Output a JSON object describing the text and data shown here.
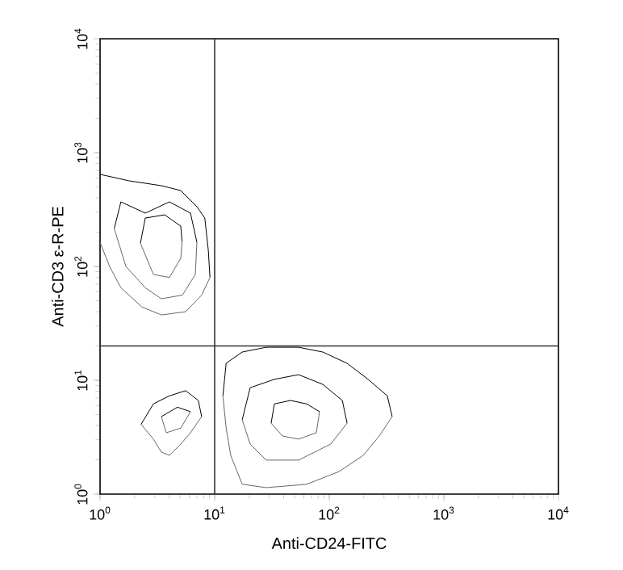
{
  "chart_data": {
    "type": "line",
    "xlabel": "Anti-CD24-FITC",
    "ylabel": "Anti-CD3 ε-R-PE",
    "log": "xy",
    "xlim": [
      1,
      10000
    ],
    "ylim": [
      1,
      10000
    ],
    "xticks": [
      {
        "value": 1,
        "label": "10$^{0}$"
      },
      {
        "value": 10,
        "label": "10$^{1}$"
      },
      {
        "value": 100,
        "label": "10$^{2}$"
      },
      {
        "value": 1000,
        "label": "10$^{3}$"
      },
      {
        "value": 10000,
        "label": "10$^{4}$"
      }
    ],
    "yticks": [
      {
        "value": 1,
        "label": "10$^{0}$"
      },
      {
        "value": 10,
        "label": "10$^{1}$"
      },
      {
        "value": 100,
        "label": "10$^{2}$"
      },
      {
        "value": 1000,
        "label": "10$^{3}$"
      },
      {
        "value": 10000,
        "label": "10$^{4}$"
      }
    ],
    "ref_lines": [
      {
        "axis": "x",
        "value": 10,
        "color": "#333333"
      },
      {
        "axis": "y",
        "value": 20,
        "color": "#333333"
      }
    ],
    "series": [
      {
        "color": "#000000",
        "x": [
          1,
          1.79,
          3.43,
          5.06,
          7.0,
          8.2,
          8.8,
          9.1
        ],
        "values": [
          644,
          565,
          512,
          464,
          335,
          266,
          139,
          80
        ]
      },
      {
        "color": "#666666",
        "x": [
          1,
          1.21,
          1.52,
          2.32,
          3.43,
          5.58,
          7.7,
          9.1
        ],
        "values": [
          163,
          100,
          65,
          44,
          37.5,
          40,
          56,
          80
        ]
      },
      {
        "color": "#000000",
        "x": [
          1.33,
          1.52,
          2.48,
          4.03,
          6.15,
          7.0
        ],
        "values": [
          215,
          369,
          294,
          369,
          294,
          163
        ]
      },
      {
        "color": "#666666",
        "x": [
          1.33,
          1.68,
          2.48,
          3.43,
          5.23,
          6.78,
          7.0
        ],
        "values": [
          215,
          100,
          65,
          52,
          56,
          85,
          163
        ]
      },
      {
        "color": "#000000",
        "x": [
          2.25,
          2.48,
          3.66,
          5.06,
          5.2
        ],
        "values": [
          160,
          266,
          284,
          226,
          165
        ]
      },
      {
        "color": "#666666",
        "x": [
          2.25,
          2.92,
          4.03,
          5.06,
          5.2
        ],
        "values": [
          160,
          85,
          80,
          118,
          165
        ]
      },
      {
        "color": "#000000",
        "x": [
          2.28,
          2.92,
          4.03,
          5.58,
          7.2,
          7.7
        ],
        "values": [
          4.1,
          6.2,
          7.3,
          8.1,
          6.65,
          4.8
        ]
      },
      {
        "color": "#666666",
        "x": [
          2.28,
          2.92,
          3.43,
          4.03,
          5.06,
          6.15,
          7.7
        ],
        "values": [
          4.1,
          3.04,
          2.34,
          2.19,
          2.75,
          3.46,
          4.8
        ]
      },
      {
        "color": "#000000",
        "x": [
          3.43,
          4.74,
          6.15
        ],
        "values": [
          4.8,
          5.8,
          5.3
        ]
      },
      {
        "color": "#666666",
        "x": [
          3.43,
          3.78,
          5.06,
          6.15
        ],
        "values": [
          4.8,
          3.46,
          3.8,
          5.3
        ]
      },
      {
        "color": "#000000",
        "x": [
          11.8,
          12.6,
          17.4,
          28.2,
          54,
          87.8,
          143,
          218,
          321,
          354
        ],
        "values": [
          7.3,
          14.1,
          17.7,
          19.5,
          19.5,
          17.7,
          14.1,
          10.2,
          7.3,
          4.8
        ]
      },
      {
        "color": "#666666",
        "x": [
          11.8,
          12.6,
          13.8,
          17.4,
          28.2,
          63.5,
          122,
          198,
          273,
          354
        ],
        "values": [
          7.3,
          3.8,
          2.19,
          1.22,
          1.14,
          1.22,
          1.58,
          2.19,
          3.24,
          4.8
        ]
      },
      {
        "color": "#000000",
        "x": [
          17.4,
          20.4,
          33.2,
          54,
          87.8,
          130,
          143
        ],
        "values": [
          4.5,
          8.6,
          10.2,
          11.2,
          9.2,
          6.65,
          4.2
        ]
      },
      {
        "color": "#666666",
        "x": [
          17.4,
          20.4,
          28.2,
          54,
          103,
          143
        ],
        "values": [
          4.5,
          2.75,
          1.99,
          1.99,
          2.75,
          4.2
        ]
      },
      {
        "color": "#000000",
        "x": [
          31.1,
          33.2,
          45.9,
          63.5,
          82.3
        ],
        "values": [
          4.2,
          6.2,
          6.65,
          6.2,
          5.3
        ]
      },
      {
        "color": "#666666",
        "x": [
          31.1,
          39.1,
          54,
          77.1,
          82.3
        ],
        "values": [
          4.2,
          3.24,
          3.04,
          3.46,
          5.3
        ]
      }
    ]
  }
}
